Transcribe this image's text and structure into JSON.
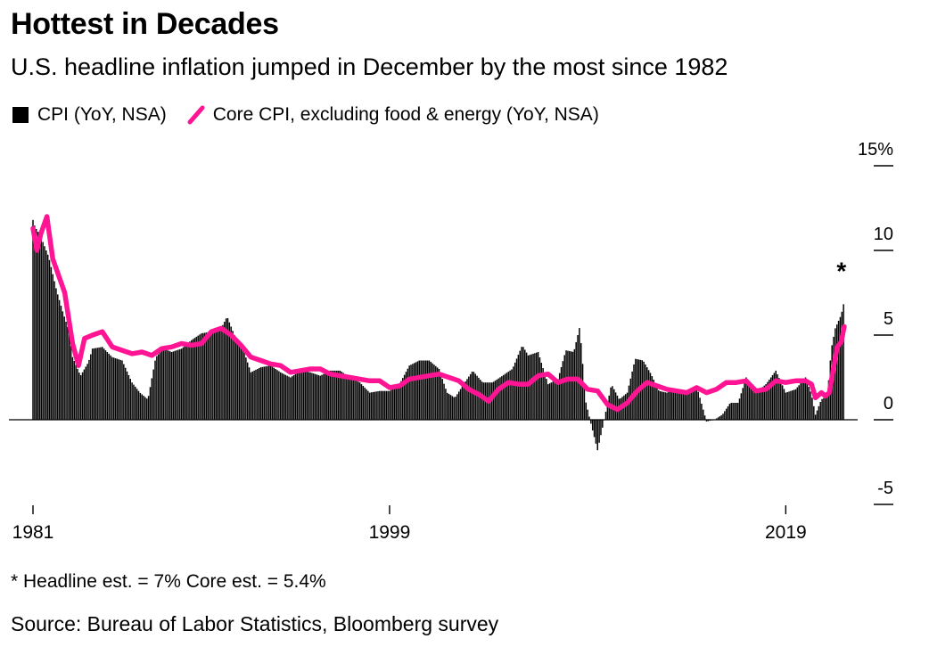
{
  "header": {
    "title": "Hottest in Decades",
    "subtitle": "U.S. headline inflation jumped in December by the most since 1982"
  },
  "legend": {
    "cpi_label": "CPI (YoY, NSA)",
    "core_label": "Core CPI, excluding food & energy (YoY, NSA)"
  },
  "colors": {
    "cpi": "#000000",
    "core": "#ff1493"
  },
  "footnote": {
    "marker": "*",
    "text": "* Headline est. = 7% Core est. = 5.4%"
  },
  "source": "Source: Bureau of Labor Statistics, Bloomberg survey",
  "chart_data": {
    "type": "bar",
    "title": "Hottest in Decades",
    "subtitle": "U.S. headline inflation jumped in December by the most since 1982",
    "x_axis": {
      "range": [
        1981.0,
        2022.0
      ],
      "tick_labels": [
        "1981",
        "1999",
        "2019"
      ],
      "tick_values": [
        1981,
        1999,
        2019
      ]
    },
    "y_axis": {
      "range": [
        -5,
        15
      ],
      "unit_suffix": "%",
      "tick_labels": [
        "15%",
        "10",
        "5",
        "0",
        "-5"
      ],
      "tick_values": [
        15,
        10,
        5,
        0,
        -5
      ],
      "position": "right"
    },
    "series": [
      {
        "name": "CPI (YoY, NSA)",
        "type": "bar",
        "x": [
          1981.0,
          1981.1,
          1981.4,
          1981.8,
          1982.2,
          1982.5,
          1982.8,
          1983.0,
          1983.4,
          1983.8,
          1984.0,
          1984.5,
          1985.0,
          1985.5,
          1986.0,
          1986.4,
          1986.8,
          1987.2,
          1987.6,
          1988.0,
          1988.5,
          1989.0,
          1989.5,
          1990.0,
          1990.5,
          1990.8,
          1991.2,
          1991.6,
          1992.0,
          1992.5,
          1993.0,
          1993.5,
          1994.0,
          1994.5,
          1995.0,
          1995.5,
          1996.0,
          1996.5,
          1997.0,
          1997.5,
          1998.0,
          1998.5,
          1999.0,
          1999.5,
          2000.0,
          2000.5,
          2001.0,
          2001.5,
          2001.9,
          2002.3,
          2002.8,
          2003.2,
          2003.7,
          2004.2,
          2004.7,
          2005.2,
          2005.7,
          2006.0,
          2006.5,
          2007.0,
          2007.5,
          2007.9,
          2008.3,
          2008.6,
          2008.9,
          2009.2,
          2009.5,
          2009.8,
          2010.2,
          2010.6,
          2011.0,
          2011.4,
          2011.8,
          2012.2,
          2012.6,
          2013.0,
          2013.5,
          2014.0,
          2014.5,
          2015.0,
          2015.4,
          2015.8,
          2016.2,
          2016.6,
          2017.0,
          2017.5,
          2018.0,
          2018.5,
          2019.0,
          2019.5,
          2020.0,
          2020.3,
          2020.5,
          2020.8,
          2021.1,
          2021.3,
          2021.5,
          2021.8,
          2021.95
        ],
        "values": [
          11.8,
          11.4,
          10.8,
          9.6,
          7.6,
          6.4,
          5.3,
          3.7,
          2.6,
          3.4,
          4.2,
          4.3,
          3.7,
          3.5,
          2.2,
          1.6,
          1.2,
          3.7,
          4.2,
          4.0,
          4.2,
          4.7,
          5.1,
          5.2,
          5.4,
          6.1,
          4.9,
          4.2,
          2.8,
          3.1,
          3.2,
          2.8,
          2.5,
          2.9,
          2.8,
          2.6,
          2.9,
          2.9,
          2.5,
          2.2,
          1.6,
          1.7,
          1.7,
          2.1,
          3.2,
          3.5,
          3.5,
          3.0,
          1.6,
          1.3,
          2.2,
          2.9,
          2.2,
          2.2,
          2.6,
          3.0,
          4.4,
          3.8,
          4.0,
          2.1,
          2.4,
          4.1,
          4.0,
          5.5,
          1.1,
          -0.4,
          -1.8,
          -0.2,
          2.1,
          1.2,
          1.6,
          3.6,
          3.5,
          2.7,
          1.7,
          1.6,
          1.8,
          1.5,
          2.0,
          -0.1,
          0.0,
          0.3,
          1.0,
          1.0,
          2.5,
          1.6,
          2.1,
          2.9,
          1.6,
          1.8,
          2.5,
          1.5,
          0.3,
          1.2,
          1.4,
          4.2,
          5.4,
          6.2,
          7.0
        ]
      },
      {
        "name": "Core CPI, excluding food & energy (YoY, NSA)",
        "type": "line",
        "x": [
          1981.0,
          1981.2,
          1981.4,
          1981.7,
          1982.0,
          1982.3,
          1982.6,
          1983.0,
          1983.3,
          1983.6,
          1984.0,
          1984.5,
          1985.0,
          1985.5,
          1986.0,
          1986.5,
          1987.0,
          1987.5,
          1988.0,
          1988.5,
          1989.0,
          1989.5,
          1990.0,
          1990.5,
          1991.0,
          1991.5,
          1992.0,
          1992.5,
          1993.0,
          1993.5,
          1994.0,
          1994.5,
          1995.0,
          1995.5,
          1996.0,
          1996.5,
          1997.0,
          1997.5,
          1998.0,
          1998.5,
          1999.0,
          1999.5,
          2000.0,
          2000.5,
          2001.0,
          2001.5,
          2002.0,
          2002.5,
          2003.0,
          2003.5,
          2004.0,
          2004.5,
          2005.0,
          2005.5,
          2006.0,
          2006.5,
          2007.0,
          2007.5,
          2008.0,
          2008.5,
          2009.0,
          2009.5,
          2010.0,
          2010.5,
          2011.0,
          2011.5,
          2012.0,
          2012.5,
          2013.0,
          2013.5,
          2014.0,
          2014.5,
          2015.0,
          2015.5,
          2016.0,
          2016.5,
          2017.0,
          2017.5,
          2018.0,
          2018.5,
          2019.0,
          2019.5,
          2020.0,
          2020.3,
          2020.5,
          2020.8,
          2021.0,
          2021.2,
          2021.4,
          2021.6,
          2021.8,
          2021.95
        ],
        "values": [
          11.3,
          10.0,
          11.0,
          12.0,
          9.5,
          8.5,
          7.5,
          4.5,
          3.2,
          4.8,
          5.0,
          5.2,
          4.3,
          4.1,
          3.9,
          4.0,
          3.8,
          4.2,
          4.3,
          4.5,
          4.4,
          4.5,
          5.2,
          5.4,
          5.0,
          4.4,
          3.7,
          3.5,
          3.3,
          3.2,
          2.8,
          2.9,
          3.0,
          3.0,
          2.7,
          2.6,
          2.5,
          2.4,
          2.3,
          2.3,
          1.9,
          2.0,
          2.4,
          2.5,
          2.6,
          2.7,
          2.5,
          2.3,
          1.8,
          1.5,
          1.1,
          1.8,
          2.2,
          2.1,
          2.1,
          2.6,
          2.7,
          2.2,
          2.4,
          2.4,
          1.8,
          1.7,
          0.9,
          0.6,
          1.0,
          1.7,
          2.2,
          2.0,
          1.8,
          1.7,
          1.6,
          1.9,
          1.6,
          1.8,
          2.2,
          2.2,
          2.3,
          1.7,
          1.8,
          2.3,
          2.2,
          2.3,
          2.3,
          2.1,
          1.3,
          1.6,
          1.4,
          1.6,
          3.0,
          4.3,
          4.6,
          5.5
        ]
      }
    ],
    "annotations": [
      {
        "text": "*",
        "x": 2021.95,
        "y": 8.6
      }
    ],
    "legend_placement": "top-left",
    "grid": false
  }
}
